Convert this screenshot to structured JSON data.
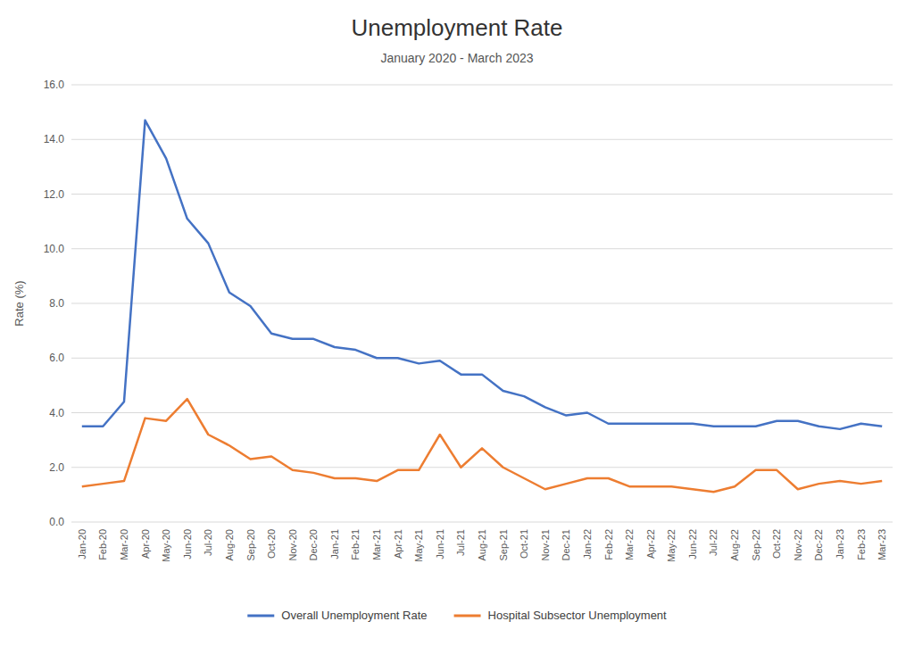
{
  "chart_data": {
    "type": "line",
    "title": "Unemployment Rate",
    "subtitle": "January 2020 - March 2023",
    "ylabel": "Rate (%)",
    "categories": [
      "Jan-20",
      "Feb-20",
      "Mar-20",
      "Apr-20",
      "May-20",
      "Jun-20",
      "Jul-20",
      "Aug-20",
      "Sep-20",
      "Oct-20",
      "Nov-20",
      "Dec-20",
      "Jan-21",
      "Feb-21",
      "Mar-21",
      "Apr-21",
      "May-21",
      "Jun-21",
      "Jul-21",
      "Aug-21",
      "Sep-21",
      "Oct-21",
      "Nov-21",
      "Dec-21",
      "Jan-22",
      "Feb-22",
      "Mar-22",
      "Apr-22",
      "May-22",
      "Jun-22",
      "Jul-22",
      "Aug-22",
      "Sep-22",
      "Oct-22",
      "Nov-22",
      "Dec-22",
      "Jan-23",
      "Feb-23",
      "Mar-23"
    ],
    "series": [
      {
        "name": "Overall Unemployment Rate",
        "color": "#4472C4",
        "values": [
          3.5,
          3.5,
          4.4,
          14.7,
          13.3,
          11.1,
          10.2,
          8.4,
          7.9,
          6.9,
          6.7,
          6.7,
          6.4,
          6.3,
          6.0,
          6.0,
          5.8,
          5.9,
          5.4,
          5.4,
          4.8,
          4.6,
          4.2,
          3.9,
          4.0,
          3.6,
          3.6,
          3.6,
          3.6,
          3.6,
          3.5,
          3.5,
          3.5,
          3.7,
          3.7,
          3.5,
          3.4,
          3.6,
          3.5
        ]
      },
      {
        "name": "Hospital Subsector Unemployment",
        "color": "#ED7D31",
        "values": [
          1.3,
          1.4,
          1.5,
          3.8,
          3.7,
          4.5,
          3.2,
          2.8,
          2.3,
          2.4,
          1.9,
          1.8,
          1.6,
          1.6,
          1.5,
          1.9,
          1.9,
          3.2,
          2.0,
          2.7,
          2.0,
          1.6,
          1.2,
          1.4,
          1.6,
          1.6,
          1.3,
          1.3,
          1.3,
          1.2,
          1.1,
          1.3,
          1.9,
          1.9,
          1.2,
          1.4,
          1.5,
          1.4,
          1.5
        ]
      }
    ],
    "ylim": [
      0.0,
      16.0
    ],
    "yticks": [
      {
        "value": 0.0,
        "label": "0.0"
      },
      {
        "value": 2.0,
        "label": "2.0"
      },
      {
        "value": 4.0,
        "label": "4.0"
      },
      {
        "value": 6.0,
        "label": "6.0"
      },
      {
        "value": 8.0,
        "label": "8.0"
      },
      {
        "value": 10.0,
        "label": "10.0"
      },
      {
        "value": 12.0,
        "label": "12.0"
      },
      {
        "value": 14.0,
        "label": "14.0"
      },
      {
        "value": 16.0,
        "label": "16.0"
      }
    ],
    "grid": true,
    "legend": "bottom"
  }
}
